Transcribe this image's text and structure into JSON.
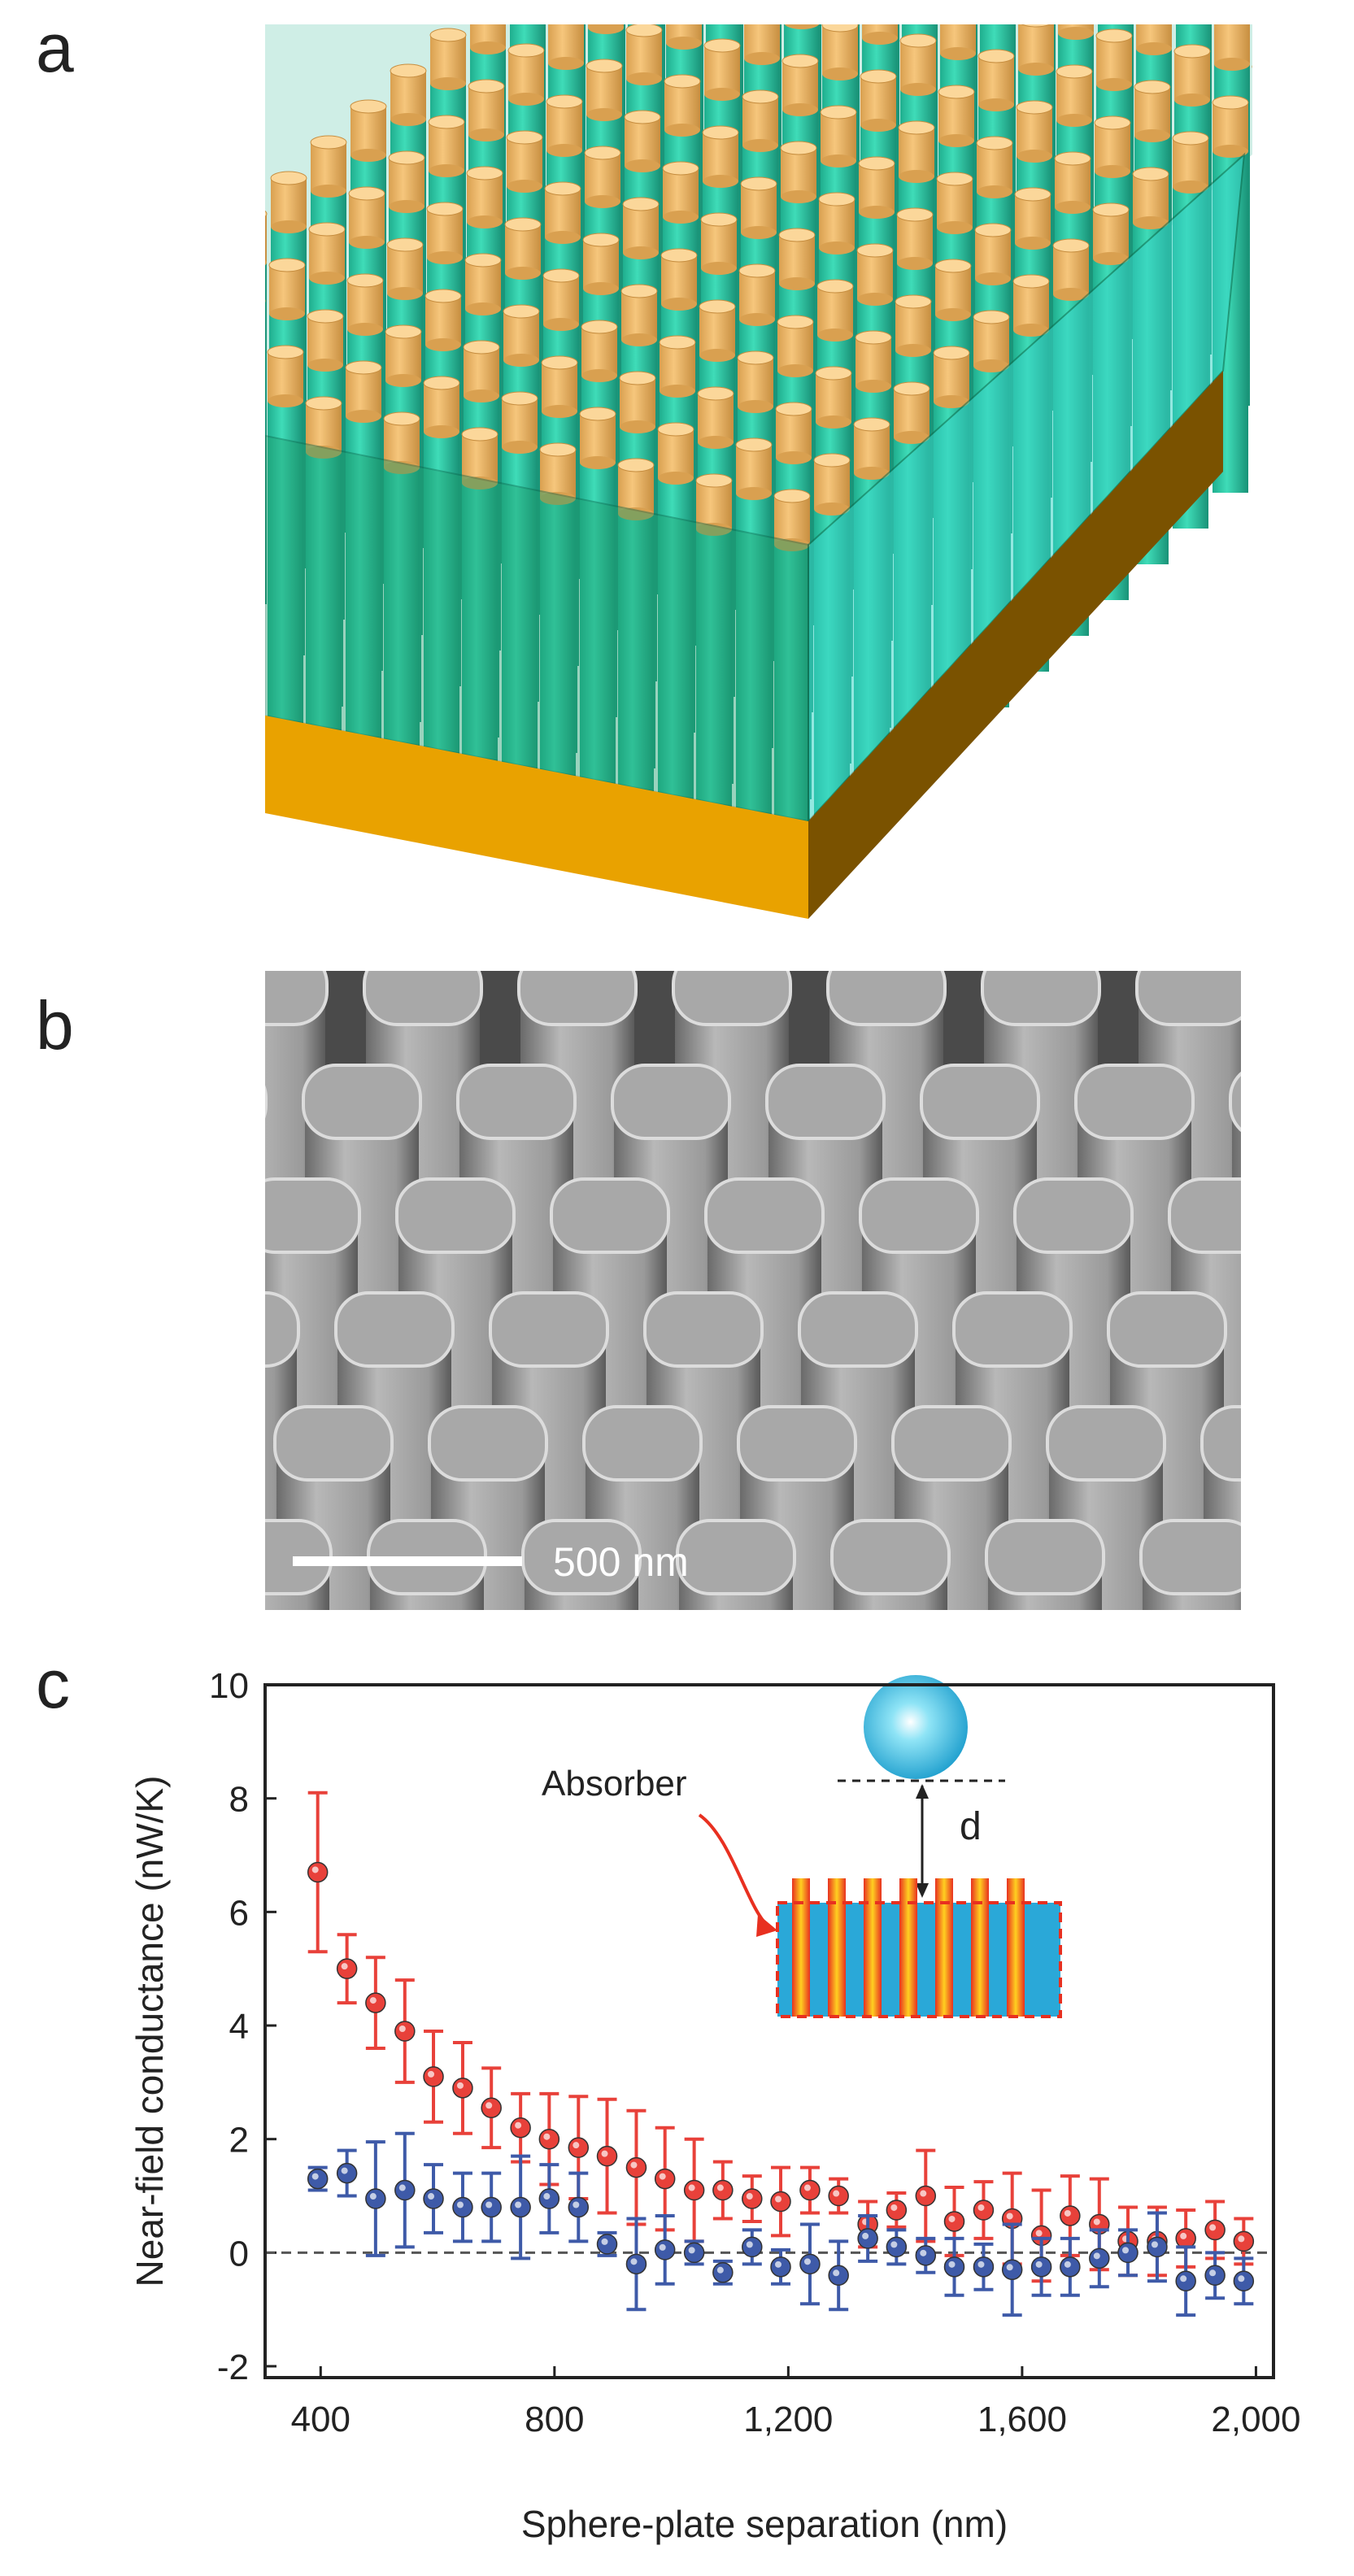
{
  "panels": [
    "a",
    "b",
    "c"
  ],
  "scale_bar": "500 nm",
  "chart_data": {
    "type": "scatter",
    "x_label": "Sphere-plate separation (nm)",
    "y_label": "Near-field conductance (nW/K)",
    "annotations": [
      "Absorber",
      "d"
    ],
    "x": [
      395,
      445,
      494,
      544,
      593,
      643,
      692,
      742,
      791,
      841,
      890,
      940,
      989,
      1039,
      1088,
      1138,
      1187,
      1237,
      1286,
      1336,
      1385,
      1435,
      1484,
      1534,
      1583,
      1633,
      1682,
      1732,
      1781,
      1831,
      1880,
      1930,
      1979
    ],
    "series": [
      {
        "color": "#e8413a",
        "values": [
          6.7,
          5.0,
          4.4,
          3.9,
          3.1,
          2.9,
          2.55,
          2.2,
          2.0,
          1.85,
          1.7,
          1.5,
          1.3,
          1.1,
          1.1,
          0.95,
          0.9,
          1.1,
          1.0,
          0.5,
          0.75,
          1.0,
          0.55,
          0.75,
          0.6,
          0.3,
          0.65,
          0.5,
          0.2,
          0.2,
          0.25,
          0.4,
          0.2
        ],
        "errors": [
          1.4,
          0.6,
          0.8,
          0.9,
          0.8,
          0.8,
          0.7,
          0.6,
          0.8,
          0.9,
          1.0,
          1.0,
          0.9,
          0.9,
          0.5,
          0.4,
          0.6,
          0.4,
          0.3,
          0.4,
          0.3,
          0.8,
          0.6,
          0.5,
          0.8,
          0.8,
          0.7,
          0.8,
          0.6,
          0.6,
          0.5,
          0.5,
          0.4
        ]
      },
      {
        "color": "#3e5aa8",
        "values": [
          1.3,
          1.4,
          0.95,
          1.1,
          0.95,
          0.8,
          0.8,
          0.8,
          0.95,
          0.8,
          0.15,
          -0.2,
          0.05,
          0.0,
          -0.35,
          0.1,
          -0.25,
          -0.2,
          -0.4,
          0.25,
          0.1,
          -0.05,
          -0.25,
          -0.25,
          -0.3,
          -0.25,
          -0.25,
          -0.1,
          0.0,
          0.1,
          -0.5,
          -0.4,
          -0.5
        ],
        "errors": [
          0.2,
          0.4,
          1.0,
          1.0,
          0.6,
          0.6,
          0.6,
          0.9,
          0.6,
          0.6,
          0.2,
          0.8,
          0.6,
          0.2,
          0.2,
          0.3,
          0.3,
          0.7,
          0.6,
          0.4,
          0.3,
          0.3,
          0.5,
          0.4,
          0.8,
          0.5,
          0.5,
          0.5,
          0.4,
          0.6,
          0.6,
          0.4,
          0.4
        ]
      }
    ],
    "reference_line": 0,
    "xlim": [
      305,
      2030
    ],
    "ylim": [
      -2.2,
      10
    ],
    "xticks": [
      400,
      800,
      {
        "value": 1200,
        "label": "1,200"
      },
      {
        "value": 1600,
        "label": "1,600"
      },
      {
        "value": 2000,
        "label": "2,000"
      }
    ],
    "yticks": [
      -2,
      0,
      2,
      4,
      6,
      8,
      10
    ]
  }
}
